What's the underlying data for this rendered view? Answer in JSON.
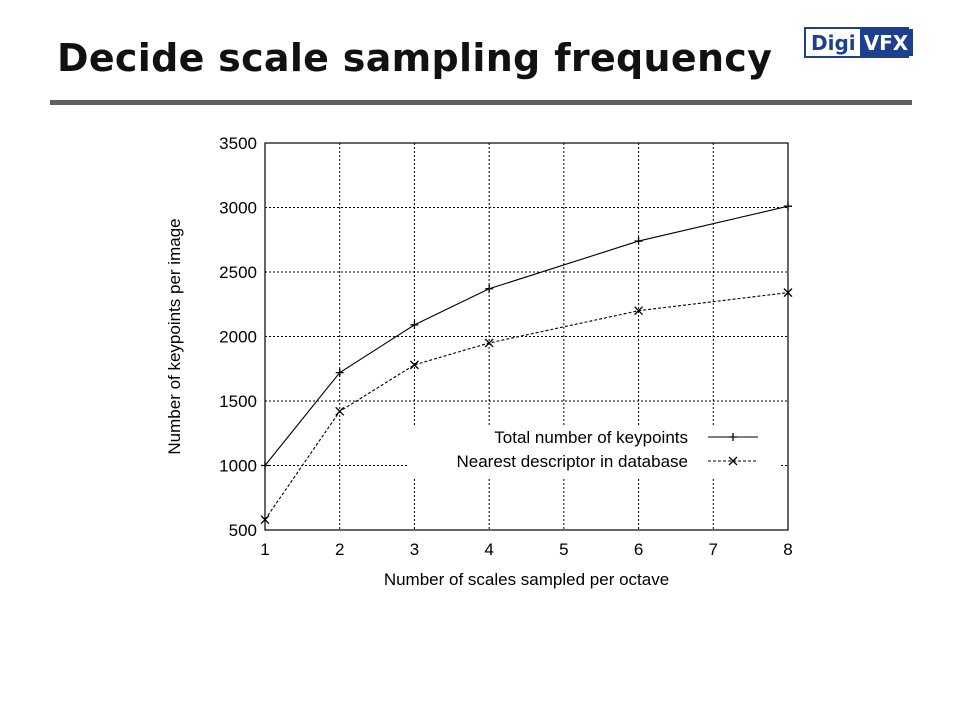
{
  "slide": {
    "title": "Decide scale sampling frequency",
    "logo_part_a": "Digi",
    "logo_part_b": "VFX"
  },
  "colors": {
    "accent": "#1c3f8f",
    "rule": "#5f5f5f"
  },
  "chart_data": {
    "type": "line",
    "title": "",
    "xlabel": "Number of scales sampled per octave",
    "ylabel": "Number of keypoints per image",
    "xlim": [
      1,
      8
    ],
    "ylim": [
      500,
      3500
    ],
    "xticks": [
      1,
      2,
      3,
      4,
      5,
      6,
      7,
      8
    ],
    "yticks": [
      500,
      1000,
      1500,
      2000,
      2500,
      3000,
      3500
    ],
    "grid": true,
    "legend_position": "lower-right",
    "series": [
      {
        "name": "Total number of keypoints",
        "style": "solid",
        "marker": "+",
        "x": [
          1,
          2,
          3,
          4,
          6,
          8
        ],
        "y": [
          1000,
          1720,
          2090,
          2370,
          2740,
          3010
        ]
      },
      {
        "name": "Nearest descriptor in database",
        "style": "dashed",
        "marker": "x",
        "x": [
          1,
          2,
          3,
          4,
          6,
          8
        ],
        "y": [
          580,
          1420,
          1780,
          1950,
          2200,
          2340
        ]
      }
    ]
  }
}
